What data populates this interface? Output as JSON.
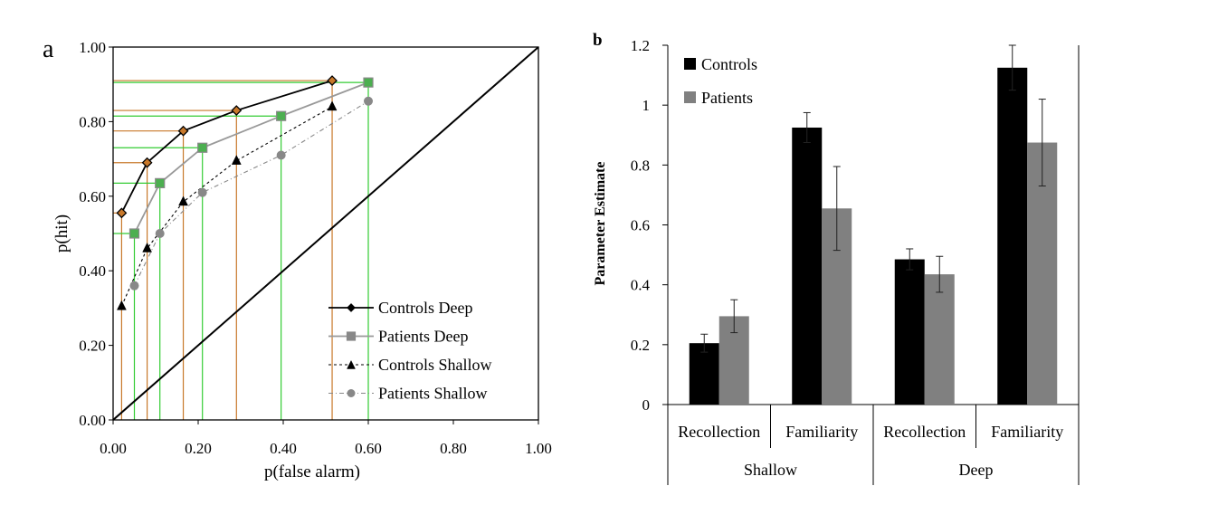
{
  "chart_data": [
    {
      "panel": "a",
      "type": "line",
      "xlabel": "p(false alarm)",
      "ylabel": "p(hit)",
      "xlim": [
        0,
        1
      ],
      "ylim": [
        0,
        1
      ],
      "x_ticks": [
        "0.00",
        "0.20",
        "0.40",
        "0.60",
        "0.80",
        "1.00"
      ],
      "y_ticks": [
        "0.00",
        "0.20",
        "0.40",
        "0.60",
        "0.80",
        "1.00"
      ],
      "chance_line": true,
      "legend_position": "bottom-right",
      "series": [
        {
          "name": "Controls Deep",
          "marker": "diamond",
          "line": "solid",
          "color": "#000000",
          "x": [
            0.02,
            0.08,
            0.165,
            0.29,
            0.515
          ],
          "y": [
            0.555,
            0.69,
            0.775,
            0.83,
            0.91
          ]
        },
        {
          "name": "Patients Deep",
          "marker": "square",
          "line": "solid",
          "color": "#999999",
          "x": [
            0.05,
            0.11,
            0.21,
            0.395,
            0.6
          ],
          "y": [
            0.5,
            0.635,
            0.73,
            0.815,
            0.905
          ]
        },
        {
          "name": "Controls Shallow",
          "marker": "triangle",
          "line": "dashed",
          "color": "#000000",
          "x": [
            0.02,
            0.08,
            0.165,
            0.29,
            0.515
          ],
          "y": [
            0.305,
            0.46,
            0.585,
            0.695,
            0.84
          ]
        },
        {
          "name": "Patients Shallow",
          "marker": "circle",
          "line": "dashdot",
          "color": "#888888",
          "x": [
            0.05,
            0.11,
            0.21,
            0.395,
            0.6
          ],
          "y": [
            0.36,
            0.5,
            0.61,
            0.71,
            0.855
          ]
        }
      ],
      "guide_colors": {
        "controls": "#c8782a",
        "patients": "#33cc33"
      },
      "marker_fill_colors": {
        "controls_deep": "#c8782a",
        "patients_deep": "#4caf50"
      }
    },
    {
      "panel": "b",
      "type": "bar",
      "ylabel": "Parameter Estimate",
      "ylim": [
        0,
        1.2
      ],
      "y_ticks": [
        "0",
        "0.2",
        "0.4",
        "0.6",
        "0.8",
        "1",
        "1.2"
      ],
      "categories": [
        "Recollection",
        "Familiarity",
        "Recollection",
        "Familiarity"
      ],
      "groups": [
        "Shallow",
        "Deep"
      ],
      "legend_position": "top-left",
      "series": [
        {
          "name": "Controls",
          "color": "#000000",
          "values": [
            0.205,
            0.925,
            0.485,
            1.125
          ],
          "errors": [
            0.03,
            0.05,
            0.035,
            0.075
          ]
        },
        {
          "name": "Patients",
          "color": "#808080",
          "values": [
            0.295,
            0.655,
            0.435,
            0.875
          ],
          "errors": [
            0.055,
            0.14,
            0.06,
            0.145
          ]
        }
      ]
    }
  ]
}
